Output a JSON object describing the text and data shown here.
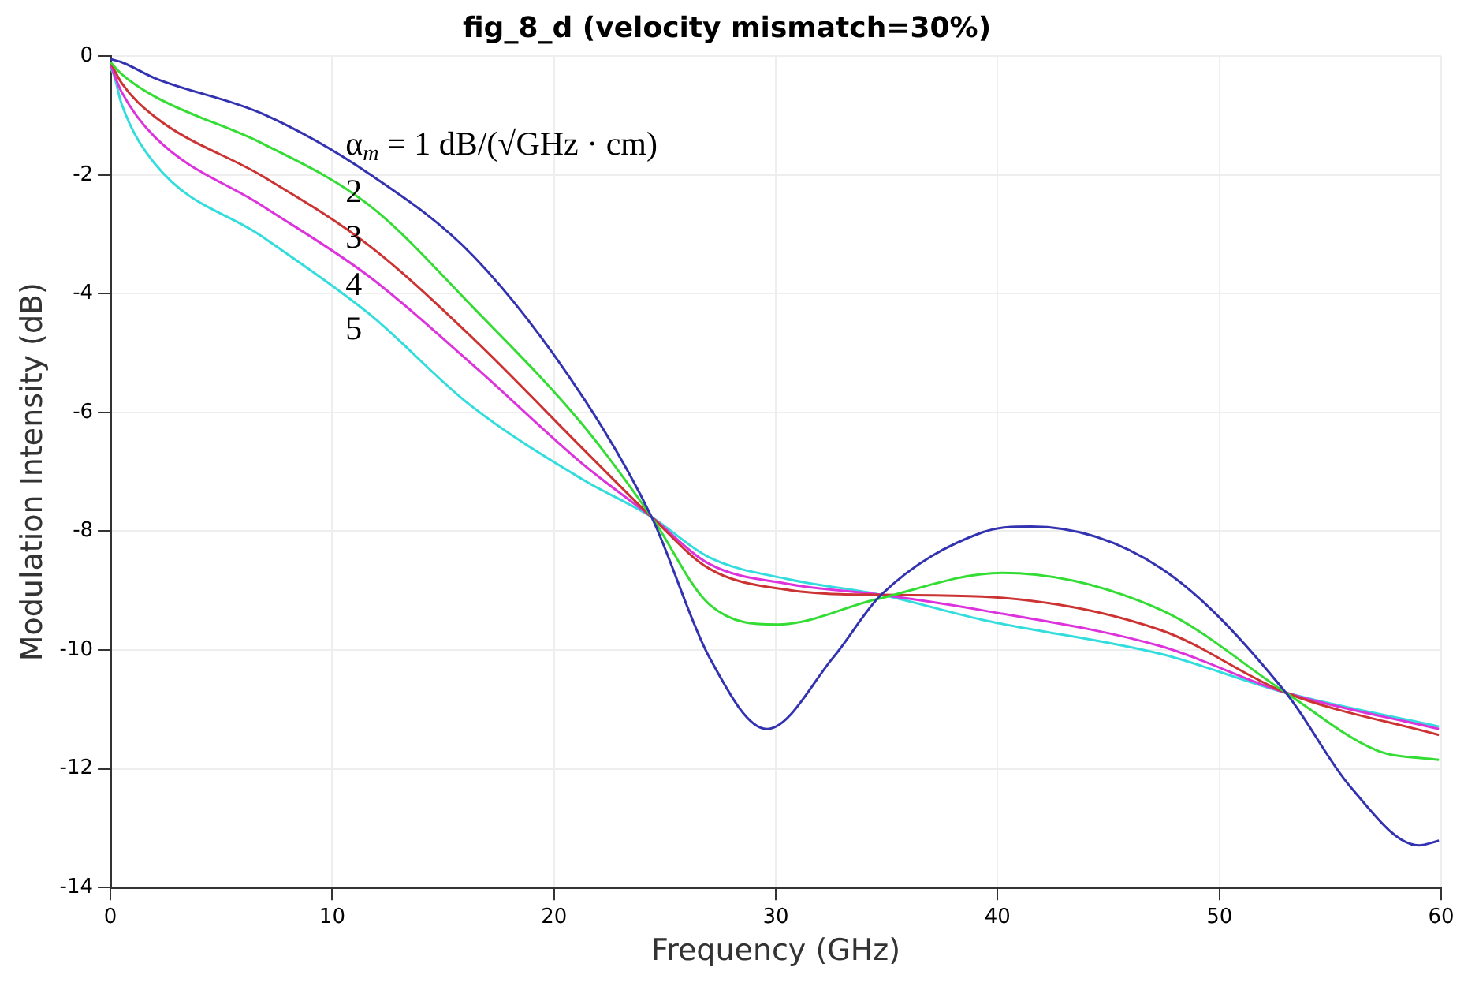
{
  "chart_data": {
    "type": "line",
    "title": "fig_8_d (velocity mismatch=30%)",
    "xlabel": "Frequency (GHz)",
    "ylabel": "Modulation Intensity (dB)",
    "xlim": [
      0,
      60
    ],
    "xticks": [
      0,
      10,
      20,
      30,
      40,
      50,
      60
    ],
    "ylim": [
      -14,
      0
    ],
    "yticks": [
      -14,
      -12,
      -10,
      -8,
      -6,
      -4,
      -2,
      0
    ],
    "grid": true,
    "legend": false,
    "marker": "none",
    "line_style": "solid",
    "series": [
      {
        "name": "α$_{m}$ = 1 dB/(√GHz · cm)",
        "color": "#3333b2",
        "x": [
          0,
          0.5,
          2,
          6.85,
          11.7,
          16.4,
          21.3,
          24.4,
          27,
          29.6,
          32.6,
          34.75,
          39.3,
          41.5,
          47.4,
          53,
          55.9,
          59,
          59.9
        ],
        "values": [
          -0.05,
          -0.1,
          -0.37,
          -0.97,
          -1.99,
          -3.38,
          -5.74,
          -7.76,
          -10.12,
          -11.33,
          -10.12,
          -9.07,
          -8.02,
          -7.92,
          -8.63,
          -10.72,
          -12.3,
          -13.29,
          -13.21
        ]
      },
      {
        "name": "2",
        "color": "#33dd33",
        "x": [
          0,
          0.5,
          2,
          6.85,
          11.7,
          16.4,
          21.3,
          24.4,
          27,
          30.1,
          34.5,
          40.2,
          47.4,
          53,
          57.1,
          59.9
        ],
        "values": [
          -0.1,
          -0.3,
          -0.68,
          -1.47,
          -2.52,
          -4.25,
          -6.21,
          -7.76,
          -9.23,
          -9.57,
          -9.15,
          -8.7,
          -9.33,
          -10.72,
          -11.69,
          -11.85
        ]
      },
      {
        "name": "3",
        "color": "#cc3333",
        "x": [
          0,
          0.5,
          2,
          6.85,
          11.7,
          16.4,
          21.3,
          24.4,
          27,
          30.6,
          34.75,
          39.3,
          47.4,
          53,
          59.9
        ],
        "values": [
          -0.1,
          -0.45,
          -1.02,
          -2.02,
          -3.2,
          -4.77,
          -6.61,
          -7.76,
          -8.63,
          -8.99,
          -9.07,
          -9.1,
          -9.67,
          -10.72,
          -11.43
        ]
      },
      {
        "name": "4",
        "color": "#dd33dd",
        "x": [
          0,
          0.5,
          2,
          6.85,
          11.7,
          16.4,
          21.3,
          24.4,
          27,
          30.6,
          34.75,
          39.3,
          47.4,
          53,
          59.9
        ],
        "values": [
          -0.15,
          -0.6,
          -1.36,
          -2.52,
          -3.72,
          -5.22,
          -6.87,
          -7.76,
          -8.55,
          -8.89,
          -9.07,
          -9.33,
          -9.94,
          -10.72,
          -11.33
        ]
      },
      {
        "name": "5",
        "color": "#33dddd",
        "x": [
          0,
          0.15,
          0.5,
          2,
          6.85,
          11.7,
          16.2,
          21.3,
          24.4,
          27,
          30.6,
          34.75,
          39.3,
          47.4,
          53,
          59.9
        ],
        "values": [
          -0.2,
          -0.31,
          -0.8,
          -1.81,
          -3.04,
          -4.35,
          -5.87,
          -7.13,
          -7.76,
          -8.44,
          -8.81,
          -9.07,
          -9.49,
          -10.07,
          -10.72,
          -11.29
        ]
      }
    ]
  }
}
